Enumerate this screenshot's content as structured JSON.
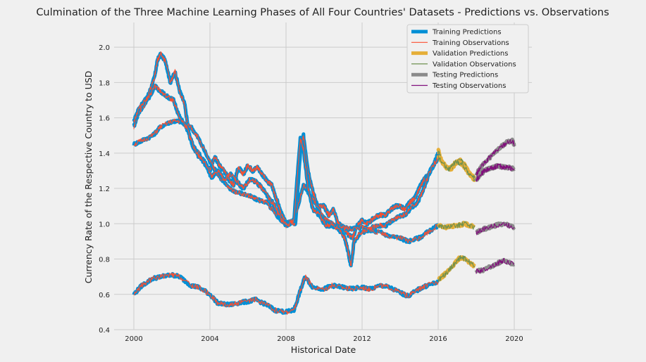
{
  "chart_data": {
    "type": "line",
    "title": "Culmination of the Three Machine Learning Phases of All Four Countries' Datasets - Predictions vs. Observations",
    "xlabel": "Historical Date",
    "ylabel": "Currency Rate of the Respective Country to USD",
    "xlim": [
      "2000-01-01",
      "2020-01-01"
    ],
    "ylim": [
      0.4,
      2.1
    ],
    "x_ticks": [
      "2000",
      "2004",
      "2008",
      "2012",
      "2016",
      "2020"
    ],
    "y_ticks": [
      "0.4",
      "0.6",
      "0.8",
      "1.0",
      "1.2",
      "1.4",
      "1.6",
      "1.8",
      "2.0"
    ],
    "grid": true,
    "legend_position": "top-right",
    "colors": {
      "training_predictions": "#008fd5",
      "training_observations": "#fc4f30",
      "validation_predictions": "#e5ae38",
      "validation_observations": "#6d904f",
      "testing_predictions": "#8b8b8b",
      "testing_observations": "#810f7c"
    },
    "legend": [
      {
        "label": "Training Predictions",
        "key": "training_predictions",
        "kind": "thick"
      },
      {
        "label": "Training Observations",
        "key": "training_observations",
        "kind": "thin"
      },
      {
        "label": "Validation Predictions",
        "key": "validation_predictions",
        "kind": "thick"
      },
      {
        "label": "Validation Observations",
        "key": "validation_observations",
        "kind": "thin"
      },
      {
        "label": "Testing Predictions",
        "key": "testing_predictions",
        "kind": "thick"
      },
      {
        "label": "Testing Observations",
        "key": "testing_observations",
        "kind": "thin"
      }
    ],
    "countries": [
      {
        "training": [
          [
            "2000-01-01",
            1.55
          ],
          [
            "2000-04-01",
            1.63
          ],
          [
            "2000-08-01",
            1.68
          ],
          [
            "2000-11-01",
            1.75
          ],
          [
            "2001-02-01",
            1.83
          ],
          [
            "2001-04-01",
            1.93
          ],
          [
            "2001-06-01",
            1.96
          ],
          [
            "2001-09-01",
            1.92
          ],
          [
            "2001-12-01",
            1.8
          ],
          [
            "2002-03-01",
            1.86
          ],
          [
            "2002-06-01",
            1.75
          ],
          [
            "2002-09-01",
            1.68
          ],
          [
            "2002-12-01",
            1.5
          ],
          [
            "2003-03-01",
            1.42
          ],
          [
            "2003-06-01",
            1.4
          ],
          [
            "2003-09-01",
            1.35
          ],
          [
            "2004-01-01",
            1.3
          ],
          [
            "2004-04-01",
            1.38
          ],
          [
            "2004-07-01",
            1.33
          ],
          [
            "2004-10-01",
            1.3
          ],
          [
            "2005-01-01",
            1.25
          ],
          [
            "2005-04-01",
            1.22
          ],
          [
            "2005-07-01",
            1.32
          ],
          [
            "2005-10-01",
            1.28
          ],
          [
            "2006-01-01",
            1.33
          ],
          [
            "2006-04-01",
            1.3
          ],
          [
            "2006-07-01",
            1.32
          ],
          [
            "2006-10-01",
            1.28
          ],
          [
            "2007-01-01",
            1.24
          ],
          [
            "2007-04-01",
            1.22
          ],
          [
            "2007-07-01",
            1.14
          ],
          [
            "2007-10-01",
            1.06
          ],
          [
            "2008-01-01",
            1.0
          ],
          [
            "2008-04-01",
            1.01
          ],
          [
            "2008-07-01",
            1.0
          ],
          [
            "2008-10-01",
            1.4
          ],
          [
            "2008-12-01",
            1.5
          ],
          [
            "2009-03-01",
            1.3
          ],
          [
            "2009-06-01",
            1.18
          ],
          [
            "2009-09-01",
            1.1
          ],
          [
            "2010-01-01",
            1.1
          ],
          [
            "2010-04-01",
            1.05
          ],
          [
            "2010-07-01",
            1.08
          ],
          [
            "2010-10-01",
            1.0
          ],
          [
            "2011-01-01",
            0.98
          ],
          [
            "2011-04-01",
            0.94
          ],
          [
            "2011-07-01",
            0.92
          ],
          [
            "2011-10-01",
            0.99
          ],
          [
            "2012-01-01",
            1.02
          ],
          [
            "2012-04-01",
            1.0
          ],
          [
            "2012-07-01",
            1.02
          ],
          [
            "2012-10-01",
            1.04
          ],
          [
            "2013-01-01",
            1.05
          ],
          [
            "2013-04-01",
            1.05
          ],
          [
            "2013-07-01",
            1.08
          ],
          [
            "2013-10-01",
            1.1
          ],
          [
            "2014-01-01",
            1.1
          ],
          [
            "2014-04-01",
            1.08
          ],
          [
            "2014-07-01",
            1.12
          ],
          [
            "2014-10-01",
            1.14
          ],
          [
            "2015-01-01",
            1.2
          ],
          [
            "2015-04-01",
            1.25
          ],
          [
            "2015-07-01",
            1.28
          ],
          [
            "2015-10-01",
            1.33
          ],
          [
            "2016-01-01",
            1.4
          ]
        ],
        "validation": [
          [
            "2016-01-01",
            1.42
          ],
          [
            "2016-03-01",
            1.36
          ],
          [
            "2016-06-01",
            1.32
          ],
          [
            "2016-09-01",
            1.31
          ],
          [
            "2016-12-01",
            1.34
          ],
          [
            "2017-03-01",
            1.36
          ],
          [
            "2017-06-01",
            1.33
          ],
          [
            "2017-09-01",
            1.28
          ],
          [
            "2017-12-01",
            1.25
          ]
        ],
        "testing": [
          [
            "2018-01-01",
            1.25
          ],
          [
            "2018-03-01",
            1.27
          ],
          [
            "2018-06-01",
            1.3
          ],
          [
            "2018-09-01",
            1.31
          ],
          [
            "2018-12-01",
            1.32
          ],
          [
            "2019-03-01",
            1.33
          ],
          [
            "2019-06-01",
            1.32
          ],
          [
            "2019-09-01",
            1.32
          ],
          [
            "2020-01-01",
            1.31
          ]
        ]
      },
      {
        "training": [
          [
            "2000-01-01",
            1.45
          ],
          [
            "2000-06-01",
            1.47
          ],
          [
            "2001-01-01",
            1.5
          ],
          [
            "2001-06-01",
            1.55
          ],
          [
            "2002-01-01",
            1.58
          ],
          [
            "2002-06-01",
            1.58
          ],
          [
            "2003-01-01",
            1.55
          ],
          [
            "2003-06-01",
            1.48
          ],
          [
            "2004-01-01",
            1.35
          ],
          [
            "2004-06-01",
            1.28
          ],
          [
            "2005-01-01",
            1.2
          ],
          [
            "2005-06-01",
            1.18
          ],
          [
            "2006-01-01",
            1.16
          ],
          [
            "2006-06-01",
            1.14
          ],
          [
            "2007-01-01",
            1.12
          ],
          [
            "2007-06-01",
            1.06
          ],
          [
            "2008-01-01",
            0.99
          ],
          [
            "2008-06-01",
            1.02
          ],
          [
            "2008-12-01",
            1.22
          ],
          [
            "2009-06-01",
            1.14
          ],
          [
            "2010-01-01",
            1.03
          ],
          [
            "2010-06-01",
            1.0
          ],
          [
            "2011-01-01",
            0.98
          ],
          [
            "2011-06-01",
            0.97
          ],
          [
            "2012-01-01",
            0.98
          ],
          [
            "2012-06-01",
            0.96
          ],
          [
            "2013-01-01",
            0.95
          ],
          [
            "2013-06-01",
            0.93
          ],
          [
            "2014-01-01",
            0.92
          ],
          [
            "2014-06-01",
            0.9
          ],
          [
            "2015-01-01",
            0.92
          ],
          [
            "2015-06-01",
            0.95
          ],
          [
            "2016-01-01",
            0.99
          ]
        ],
        "validation": [
          [
            "2016-01-01",
            0.99
          ],
          [
            "2016-06-01",
            0.98
          ],
          [
            "2017-01-01",
            0.99
          ],
          [
            "2017-06-01",
            1.0
          ],
          [
            "2017-12-01",
            0.98
          ]
        ],
        "testing": [
          [
            "2018-01-01",
            0.95
          ],
          [
            "2018-06-01",
            0.97
          ],
          [
            "2019-01-01",
            0.99
          ],
          [
            "2019-06-01",
            1.0
          ],
          [
            "2020-01-01",
            0.98
          ]
        ]
      },
      {
        "training": [
          [
            "2000-01-01",
            0.6
          ],
          [
            "2000-06-01",
            0.65
          ],
          [
            "2001-01-01",
            0.69
          ],
          [
            "2001-06-01",
            0.7
          ],
          [
            "2002-01-01",
            0.71
          ],
          [
            "2002-06-01",
            0.7
          ],
          [
            "2003-01-01",
            0.65
          ],
          [
            "2003-06-01",
            0.64
          ],
          [
            "2004-01-01",
            0.6
          ],
          [
            "2004-06-01",
            0.55
          ],
          [
            "2005-01-01",
            0.54
          ],
          [
            "2005-06-01",
            0.55
          ],
          [
            "2006-01-01",
            0.56
          ],
          [
            "2006-06-01",
            0.57
          ],
          [
            "2007-01-01",
            0.54
          ],
          [
            "2007-06-01",
            0.51
          ],
          [
            "2008-01-01",
            0.5
          ],
          [
            "2008-06-01",
            0.51
          ],
          [
            "2008-10-01",
            0.62
          ],
          [
            "2009-01-01",
            0.7
          ],
          [
            "2009-06-01",
            0.64
          ],
          [
            "2010-01-01",
            0.63
          ],
          [
            "2010-06-01",
            0.65
          ],
          [
            "2011-01-01",
            0.64
          ],
          [
            "2011-06-01",
            0.63
          ],
          [
            "2012-01-01",
            0.64
          ],
          [
            "2012-06-01",
            0.63
          ],
          [
            "2013-01-01",
            0.65
          ],
          [
            "2013-06-01",
            0.64
          ],
          [
            "2014-01-01",
            0.61
          ],
          [
            "2014-06-01",
            0.59
          ],
          [
            "2015-01-01",
            0.63
          ],
          [
            "2015-06-01",
            0.65
          ],
          [
            "2016-01-01",
            0.67
          ]
        ],
        "validation": [
          [
            "2016-01-01",
            0.68
          ],
          [
            "2016-06-01",
            0.72
          ],
          [
            "2016-12-01",
            0.78
          ],
          [
            "2017-03-01",
            0.81
          ],
          [
            "2017-06-01",
            0.8
          ],
          [
            "2017-12-01",
            0.76
          ]
        ],
        "testing": [
          [
            "2018-01-01",
            0.73
          ],
          [
            "2018-06-01",
            0.74
          ],
          [
            "2019-01-01",
            0.77
          ],
          [
            "2019-06-01",
            0.79
          ],
          [
            "2020-01-01",
            0.77
          ]
        ]
      },
      {
        "training": [
          [
            "2000-01-01",
            1.58
          ],
          [
            "2000-04-01",
            1.65
          ],
          [
            "2000-08-01",
            1.7
          ],
          [
            "2000-11-01",
            1.72
          ],
          [
            "2001-02-01",
            1.78
          ],
          [
            "2001-06-01",
            1.75
          ],
          [
            "2001-10-01",
            1.72
          ],
          [
            "2002-02-01",
            1.7
          ],
          [
            "2002-06-01",
            1.6
          ],
          [
            "2002-10-01",
            1.55
          ],
          [
            "2003-02-01",
            1.45
          ],
          [
            "2003-06-01",
            1.38
          ],
          [
            "2003-10-01",
            1.35
          ],
          [
            "2004-02-01",
            1.26
          ],
          [
            "2004-06-01",
            1.3
          ],
          [
            "2004-10-01",
            1.25
          ],
          [
            "2005-02-01",
            1.28
          ],
          [
            "2005-06-01",
            1.24
          ],
          [
            "2005-10-01",
            1.2
          ],
          [
            "2006-02-01",
            1.25
          ],
          [
            "2006-06-01",
            1.24
          ],
          [
            "2006-10-01",
            1.2
          ],
          [
            "2007-02-01",
            1.15
          ],
          [
            "2007-06-01",
            1.1
          ],
          [
            "2007-10-01",
            1.02
          ],
          [
            "2008-02-01",
            0.99
          ],
          [
            "2008-06-01",
            1.02
          ],
          [
            "2008-10-01",
            1.48
          ],
          [
            "2008-12-01",
            1.42
          ],
          [
            "2009-03-01",
            1.2
          ],
          [
            "2009-06-01",
            1.08
          ],
          [
            "2009-10-01",
            1.05
          ],
          [
            "2010-02-01",
            0.99
          ],
          [
            "2010-06-01",
            0.99
          ],
          [
            "2010-10-01",
            0.97
          ],
          [
            "2011-02-01",
            0.92
          ],
          [
            "2011-04-01",
            0.85
          ],
          [
            "2011-06-01",
            0.76
          ],
          [
            "2011-08-01",
            0.9
          ],
          [
            "2011-12-01",
            0.95
          ],
          [
            "2012-04-01",
            0.96
          ],
          [
            "2012-08-01",
            0.98
          ],
          [
            "2012-12-01",
            0.99
          ],
          [
            "2013-04-01",
            0.99
          ],
          [
            "2013-08-01",
            1.02
          ],
          [
            "2013-12-01",
            1.04
          ],
          [
            "2014-04-01",
            1.05
          ],
          [
            "2014-08-01",
            1.09
          ],
          [
            "2014-12-01",
            1.12
          ],
          [
            "2015-04-01",
            1.2
          ],
          [
            "2015-08-01",
            1.3
          ],
          [
            "2015-12-01",
            1.36
          ],
          [
            "2016-01-01",
            1.38
          ]
        ],
        "validation": [
          [
            "2016-01-01",
            1.38
          ],
          [
            "2016-04-01",
            1.34
          ],
          [
            "2016-08-01",
            1.31
          ],
          [
            "2016-12-01",
            1.35
          ],
          [
            "2017-04-01",
            1.34
          ],
          [
            "2017-08-01",
            1.29
          ],
          [
            "2017-12-01",
            1.26
          ]
        ],
        "testing": [
          [
            "2018-01-01",
            1.28
          ],
          [
            "2018-04-01",
            1.32
          ],
          [
            "2018-08-01",
            1.36
          ],
          [
            "2018-12-01",
            1.4
          ],
          [
            "2019-04-01",
            1.43
          ],
          [
            "2019-08-01",
            1.46
          ],
          [
            "2019-12-01",
            1.47
          ],
          [
            "2020-01-01",
            1.44
          ]
        ]
      }
    ]
  }
}
